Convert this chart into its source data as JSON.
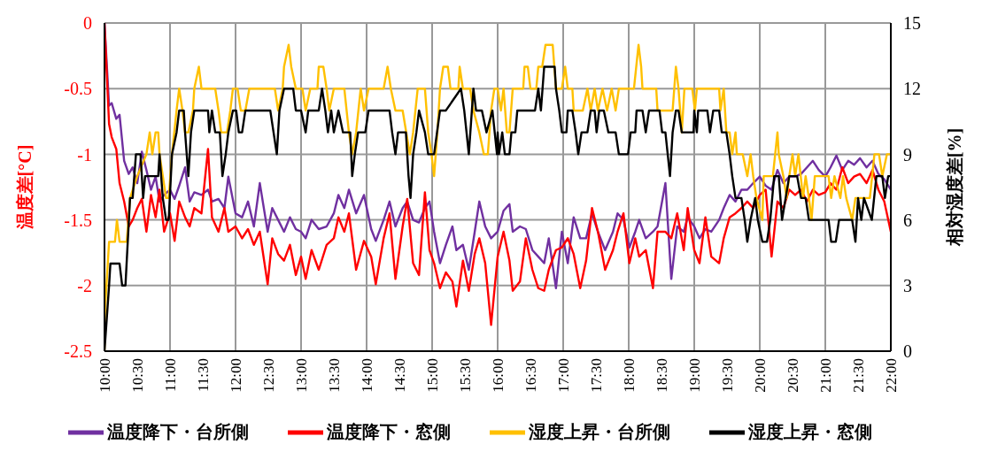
{
  "chart_data": {
    "type": "line",
    "ylabel": "温度差[°C]",
    "y2label": "相対湿度差[%]",
    "x": [
      10.0,
      10.07,
      10.11,
      10.18,
      10.23,
      10.3,
      10.37,
      10.43,
      10.5,
      10.57,
      10.64,
      10.71,
      10.78,
      10.84,
      10.91,
      11.0,
      11.07,
      11.14,
      11.23,
      11.3,
      11.37,
      11.48,
      11.58,
      11.64,
      11.74,
      11.83,
      11.89,
      12.0,
      12.1,
      12.19,
      12.28,
      12.37,
      12.49,
      12.56,
      12.65,
      12.74,
      12.83,
      12.92,
      13.0,
      13.07,
      13.16,
      13.27,
      13.39,
      13.5,
      13.57,
      13.66,
      13.73,
      13.84,
      13.96,
      14.07,
      14.14,
      14.26,
      14.35,
      14.44,
      14.55,
      14.62,
      14.71,
      14.8,
      14.89,
      14.96,
      15.03,
      15.12,
      15.21,
      15.31,
      15.37,
      15.47,
      15.56,
      15.65,
      15.72,
      15.81,
      15.9,
      16.0,
      16.09,
      16.18,
      16.23,
      16.34,
      16.43,
      16.53,
      16.62,
      16.71,
      16.78,
      16.89,
      16.98,
      17.07,
      17.16,
      17.26,
      17.35,
      17.44,
      17.53,
      17.64,
      17.76,
      17.83,
      17.92,
      18.01,
      18.1,
      18.16,
      18.26,
      18.37,
      18.44,
      18.56,
      18.65,
      18.74,
      18.84,
      18.9,
      19.0,
      19.08,
      19.17,
      19.26,
      19.38,
      19.45,
      19.54,
      19.63,
      19.72,
      19.81,
      19.9,
      20.0,
      20.09,
      20.18,
      20.27,
      20.36,
      20.45,
      20.54,
      20.63,
      20.72,
      20.81,
      20.9,
      21.0,
      21.08,
      21.17,
      21.26,
      21.35,
      21.44,
      21.53,
      21.63,
      21.72,
      21.81,
      21.9,
      22.0
    ],
    "series": [
      {
        "name": "温度降下・台所側",
        "color": "#7030a0",
        "values": [
          0,
          -0.63,
          -0.61,
          -0.73,
          -0.7,
          -1.05,
          -1.15,
          -1.1,
          -1.22,
          -0.98,
          -1.12,
          -1.27,
          -1.17,
          -1.36,
          -1.31,
          -1.27,
          -1.34,
          -1.24,
          -1.1,
          -1.36,
          -1.29,
          -1.31,
          -1.27,
          -1.36,
          -1.34,
          -1.41,
          -1.17,
          -1.45,
          -1.48,
          -1.36,
          -1.55,
          -1.22,
          -1.59,
          -1.41,
          -1.5,
          -1.59,
          -1.48,
          -1.57,
          -1.59,
          -1.64,
          -1.5,
          -1.57,
          -1.55,
          -1.45,
          -1.31,
          -1.41,
          -1.27,
          -1.45,
          -1.31,
          -1.57,
          -1.66,
          -1.5,
          -1.36,
          -1.55,
          -1.41,
          -1.36,
          -1.5,
          -1.52,
          -1.41,
          -1.36,
          -1.59,
          -1.83,
          -1.69,
          -1.55,
          -1.73,
          -1.69,
          -1.88,
          -1.59,
          -1.36,
          -1.55,
          -1.64,
          -1.59,
          -1.43,
          -1.38,
          -1.59,
          -1.55,
          -1.57,
          -1.73,
          -1.78,
          -1.83,
          -1.64,
          -2.02,
          -1.59,
          -1.83,
          -1.48,
          -1.64,
          -1.64,
          -1.45,
          -1.59,
          -1.73,
          -1.59,
          -1.45,
          -1.5,
          -1.71,
          -1.59,
          -1.5,
          -1.64,
          -1.59,
          -1.55,
          -1.22,
          -1.95,
          -1.55,
          -1.59,
          -1.48,
          -1.55,
          -1.64,
          -1.57,
          -1.59,
          -1.5,
          -1.41,
          -1.31,
          -1.36,
          -1.27,
          -1.27,
          -1.22,
          -1.17,
          -1.24,
          -1.27,
          -1.12,
          -1.22,
          -1.17,
          -1.17,
          -1.15,
          -1.1,
          -1.05,
          -1.12,
          -1.17,
          -1.1,
          -1.01,
          -1.12,
          -1.05,
          -1.08,
          -1.03,
          -1.1,
          -1.05,
          -1.15,
          -1.19,
          -1.27
        ]
      },
      {
        "name": "温度降下・窓側",
        "color": "#ff0000",
        "values": [
          0,
          -0.77,
          -0.87,
          -0.96,
          -1.22,
          -1.36,
          -1.55,
          -1.5,
          -1.41,
          -1.34,
          -1.59,
          -1.31,
          -1.48,
          -1.27,
          -1.59,
          -1.45,
          -1.66,
          -1.36,
          -1.48,
          -1.55,
          -1.41,
          -1.45,
          -0.96,
          -1.48,
          -1.59,
          -1.41,
          -1.59,
          -1.55,
          -1.64,
          -1.57,
          -1.69,
          -1.59,
          -1.99,
          -1.64,
          -1.76,
          -1.81,
          -1.69,
          -1.92,
          -1.78,
          -1.95,
          -1.73,
          -1.88,
          -1.69,
          -1.64,
          -1.48,
          -1.59,
          -1.45,
          -1.88,
          -1.66,
          -1.78,
          -1.99,
          -1.64,
          -1.45,
          -1.95,
          -1.55,
          -1.34,
          -1.83,
          -1.92,
          -1.29,
          -1.73,
          -1.83,
          -2.02,
          -1.9,
          -1.97,
          -2.16,
          -1.81,
          -2.04,
          -1.76,
          -1.64,
          -1.83,
          -2.3,
          -1.78,
          -1.59,
          -1.81,
          -2.04,
          -1.97,
          -1.64,
          -1.88,
          -2.02,
          -2.04,
          -1.88,
          -1.73,
          -1.71,
          -1.64,
          -1.76,
          -2.02,
          -1.81,
          -1.41,
          -1.59,
          -1.88,
          -1.73,
          -1.59,
          -1.45,
          -1.83,
          -1.64,
          -1.78,
          -1.73,
          -2.02,
          -1.59,
          -1.59,
          -1.64,
          -1.45,
          -1.73,
          -1.41,
          -1.73,
          -1.83,
          -1.48,
          -1.78,
          -1.83,
          -1.64,
          -1.48,
          -1.45,
          -1.41,
          -1.36,
          -1.41,
          -1.31,
          -1.27,
          -1.78,
          -1.36,
          -1.41,
          -1.27,
          -1.31,
          -1.27,
          -1.36,
          -1.27,
          -1.31,
          -1.29,
          -1.22,
          -1.27,
          -1.1,
          -1.22,
          -1.17,
          -1.15,
          -1.22,
          -1.12,
          -1.27,
          -1.36,
          -1.59
        ]
      },
      {
        "name": "湿度上昇・台所側",
        "color": "#ffc000",
        "axis": "y2",
        "x": [
          10.0,
          10.01,
          10.07,
          10.16,
          10.19,
          10.23,
          10.34,
          10.39,
          10.5,
          10.64,
          10.69,
          10.73,
          10.78,
          10.82,
          10.84,
          10.89,
          10.94,
          10.98,
          11.03,
          11.1,
          11.14,
          11.19,
          11.23,
          11.28,
          11.35,
          11.37,
          11.44,
          11.48,
          11.69,
          11.74,
          11.78,
          11.87,
          11.92,
          11.96,
          12.03,
          12.08,
          12.15,
          12.21,
          12.6,
          12.65,
          12.72,
          12.74,
          12.81,
          12.85,
          12.92,
          13.02,
          13.07,
          13.14,
          13.25,
          13.27,
          13.34,
          13.39,
          13.43,
          13.5,
          13.66,
          13.73,
          13.78,
          13.84,
          13.91,
          13.96,
          14.03,
          14.26,
          14.32,
          14.37,
          14.44,
          14.55,
          14.66,
          14.71,
          14.78,
          14.89,
          14.94,
          14.99,
          15.03,
          15.08,
          15.12,
          15.17,
          15.24,
          15.28,
          15.4,
          15.42,
          15.47,
          15.58,
          15.63,
          15.72,
          15.79,
          15.85,
          15.9,
          15.95,
          16.0,
          16.05,
          16.09,
          16.14,
          16.18,
          16.23,
          16.39,
          16.41,
          16.46,
          16.5,
          16.59,
          16.62,
          16.68,
          16.73,
          16.8,
          16.84,
          16.89,
          16.98,
          17.03,
          17.07,
          17.14,
          17.16,
          17.3,
          17.37,
          17.42,
          17.48,
          17.53,
          17.6,
          17.67,
          17.74,
          17.8,
          17.85,
          18.08,
          18.15,
          18.19,
          18.21,
          18.42,
          18.44,
          18.67,
          18.72,
          18.76,
          18.81,
          18.85,
          18.97,
          19.01,
          19.04,
          19.38,
          19.4,
          19.45,
          19.49,
          19.54,
          19.58,
          19.63,
          19.65,
          19.74,
          19.81,
          19.86,
          19.9,
          19.95,
          20.04,
          20.06,
          20.2,
          20.27,
          20.29,
          20.36,
          20.41,
          20.45,
          20.5,
          20.54,
          20.59,
          20.66,
          20.7,
          20.75,
          20.79,
          20.84,
          21.05,
          21.09,
          21.14,
          21.23,
          21.27,
          21.32,
          21.41,
          21.46,
          21.68,
          21.75,
          21.82,
          21.87,
          21.94,
          22.0
        ],
        "values": [
          0,
          2,
          5,
          5,
          6,
          5,
          5,
          7,
          8,
          9,
          10,
          9,
          10,
          10,
          9,
          8,
          7,
          7,
          9,
          11,
          12,
          11,
          10,
          10,
          11,
          12,
          13,
          12,
          12,
          11,
          10,
          10,
          11,
          12,
          12,
          11,
          11,
          12,
          12,
          11,
          12,
          13,
          14,
          13,
          12,
          12,
          11,
          12,
          12,
          13,
          13,
          12,
          11,
          12,
          12,
          10,
          9,
          10,
          12,
          11,
          12,
          12,
          13,
          12,
          11,
          11,
          9,
          10,
          12,
          12,
          10,
          9,
          8,
          10,
          12,
          13,
          13,
          12,
          12,
          13,
          12,
          12,
          11,
          10,
          9,
          9,
          11,
          12,
          12,
          11,
          12,
          10,
          10,
          12,
          12,
          13,
          13,
          12,
          12,
          13,
          13,
          14,
          14,
          14,
          12,
          12,
          13,
          12,
          12,
          11,
          11,
          12,
          11,
          12,
          11,
          12,
          11,
          12,
          11,
          12,
          12,
          14,
          13,
          12,
          12,
          11,
          11,
          13,
          12,
          10,
          12,
          12,
          11,
          12,
          12,
          11,
          12,
          10,
          10,
          9,
          10,
          9,
          9,
          8,
          9,
          8,
          7,
          6,
          8,
          8,
          10,
          9,
          8,
          7,
          8,
          9,
          8,
          9,
          7,
          8,
          7,
          6,
          8,
          8,
          7,
          8,
          7,
          8,
          7,
          6,
          7,
          7,
          9,
          9,
          8,
          9,
          9
        ]
      },
      {
        "name": "湿度上昇・窓側",
        "color": "#000000",
        "axis": "y2",
        "x": [
          10.0,
          10.07,
          10.09,
          10.23,
          10.27,
          10.32,
          10.39,
          10.43,
          10.48,
          10.55,
          10.57,
          10.59,
          10.62,
          10.82,
          10.84,
          10.89,
          10.94,
          10.98,
          11.03,
          11.1,
          11.14,
          11.21,
          11.23,
          11.28,
          11.32,
          11.37,
          11.58,
          11.6,
          11.64,
          11.69,
          11.76,
          11.8,
          11.85,
          11.89,
          11.96,
          12.01,
          12.05,
          12.1,
          12.15,
          12.53,
          12.58,
          12.63,
          12.65,
          12.67,
          12.74,
          12.88,
          12.92,
          13.0,
          13.07,
          13.11,
          13.27,
          13.32,
          13.37,
          13.41,
          13.46,
          13.5,
          13.57,
          13.64,
          13.75,
          13.78,
          13.82,
          13.87,
          13.98,
          14.03,
          14.35,
          14.39,
          14.44,
          14.48,
          14.6,
          14.64,
          14.67,
          14.71,
          14.76,
          14.8,
          14.89,
          14.94,
          15.03,
          15.12,
          15.21,
          15.44,
          15.49,
          15.56,
          15.63,
          15.67,
          15.76,
          15.83,
          15.92,
          15.99,
          16.0,
          16.02,
          16.07,
          16.11,
          16.18,
          16.21,
          16.27,
          16.3,
          16.34,
          16.57,
          16.62,
          16.66,
          16.71,
          16.87,
          16.89,
          16.94,
          16.98,
          17.05,
          17.07,
          17.14,
          17.19,
          17.23,
          17.28,
          17.37,
          17.42,
          17.48,
          17.51,
          17.55,
          17.62,
          17.69,
          17.8,
          17.85,
          17.99,
          18.03,
          18.1,
          18.12,
          18.21,
          18.26,
          18.31,
          18.4,
          18.47,
          18.51,
          18.56,
          18.63,
          18.67,
          18.72,
          18.76,
          18.81,
          18.99,
          19.0,
          19.04,
          19.06,
          19.2,
          19.24,
          19.29,
          19.38,
          19.42,
          19.49,
          19.54,
          19.58,
          19.63,
          19.72,
          19.77,
          19.81,
          19.86,
          19.93,
          19.97,
          20.04,
          20.11,
          20.16,
          20.22,
          20.29,
          20.34,
          20.45,
          20.57,
          20.63,
          20.7,
          20.75,
          21.05,
          21.09,
          21.16,
          21.21,
          21.41,
          21.46,
          21.5,
          21.55,
          21.59,
          21.71,
          21.78,
          21.87,
          21.91,
          21.96,
          22.0
        ],
        "values": [
          0,
          3,
          4,
          4,
          3,
          3,
          7,
          7,
          9,
          9,
          8,
          7,
          8,
          8,
          9,
          7,
          6,
          6,
          9,
          10,
          11,
          11,
          10,
          8,
          10,
          11,
          11,
          10,
          11,
          10,
          10,
          8,
          9,
          10,
          11,
          11,
          10,
          10,
          11,
          11,
          10,
          9,
          10,
          11,
          12,
          12,
          11,
          11,
          10,
          11,
          11,
          12,
          11,
          10,
          11,
          10,
          11,
          10,
          10,
          8,
          9,
          10,
          10,
          11,
          11,
          10,
          9,
          10,
          10,
          8,
          7,
          9,
          10,
          11,
          10,
          9,
          9,
          11,
          11,
          12,
          11,
          9,
          12,
          11,
          11,
          10,
          11,
          9,
          10,
          9,
          10,
          9,
          9,
          10,
          10,
          11,
          11,
          11,
          12,
          11,
          13,
          13,
          12,
          11,
          10,
          10,
          11,
          11,
          10,
          9,
          10,
          10,
          11,
          11,
          10,
          11,
          11,
          10,
          10,
          9,
          9,
          10,
          10,
          11,
          11,
          10,
          11,
          11,
          11,
          10,
          10,
          8,
          10,
          11,
          11,
          10,
          10,
          11,
          10,
          11,
          11,
          10,
          11,
          11,
          10,
          10,
          9,
          8,
          7,
          7,
          6,
          5,
          6,
          7,
          6,
          5,
          5,
          6,
          8,
          8,
          6,
          8,
          8,
          7,
          7,
          6,
          6,
          5,
          5,
          6,
          6,
          5,
          7,
          6,
          7,
          6,
          8,
          8,
          7,
          8,
          8
        ]
      }
    ],
    "xlim": [
      10,
      22
    ],
    "xticks": [
      {
        "value": 10,
        "label": "10:00"
      },
      {
        "value": 10.5,
        "label": "10:30"
      },
      {
        "value": 11,
        "label": "11:00"
      },
      {
        "value": 11.5,
        "label": "11:30"
      },
      {
        "value": 12,
        "label": "12:00"
      },
      {
        "value": 12.5,
        "label": "12:30"
      },
      {
        "value": 13,
        "label": "13:00"
      },
      {
        "value": 13.5,
        "label": "13:30"
      },
      {
        "value": 14,
        "label": "14:00"
      },
      {
        "value": 14.5,
        "label": "14:30"
      },
      {
        "value": 15,
        "label": "15:00"
      },
      {
        "value": 15.5,
        "label": "15:30"
      },
      {
        "value": 16,
        "label": "16:00"
      },
      {
        "value": 16.5,
        "label": "16:30"
      },
      {
        "value": 17,
        "label": "17:00"
      },
      {
        "value": 17.5,
        "label": "17:30"
      },
      {
        "value": 18,
        "label": "18:00"
      },
      {
        "value": 18.5,
        "label": "18:30"
      },
      {
        "value": 19,
        "label": "19:00"
      },
      {
        "value": 19.5,
        "label": "19:30"
      },
      {
        "value": 20,
        "label": "20:00"
      },
      {
        "value": 20.5,
        "label": "20:30"
      },
      {
        "value": 21,
        "label": "21:00"
      },
      {
        "value": 21.5,
        "label": "21:30"
      },
      {
        "value": 22,
        "label": "22:00"
      }
    ],
    "ylim": [
      -2.5,
      0
    ],
    "yticks": [
      -2.5,
      -2,
      -1.5,
      -1,
      -0.5,
      0
    ],
    "y2lim": [
      0,
      15
    ],
    "y2ticks": [
      0,
      3,
      6,
      9,
      12,
      15
    ],
    "grid": true,
    "legend": "bottom",
    "marker": "none",
    "line_style": "solid"
  }
}
